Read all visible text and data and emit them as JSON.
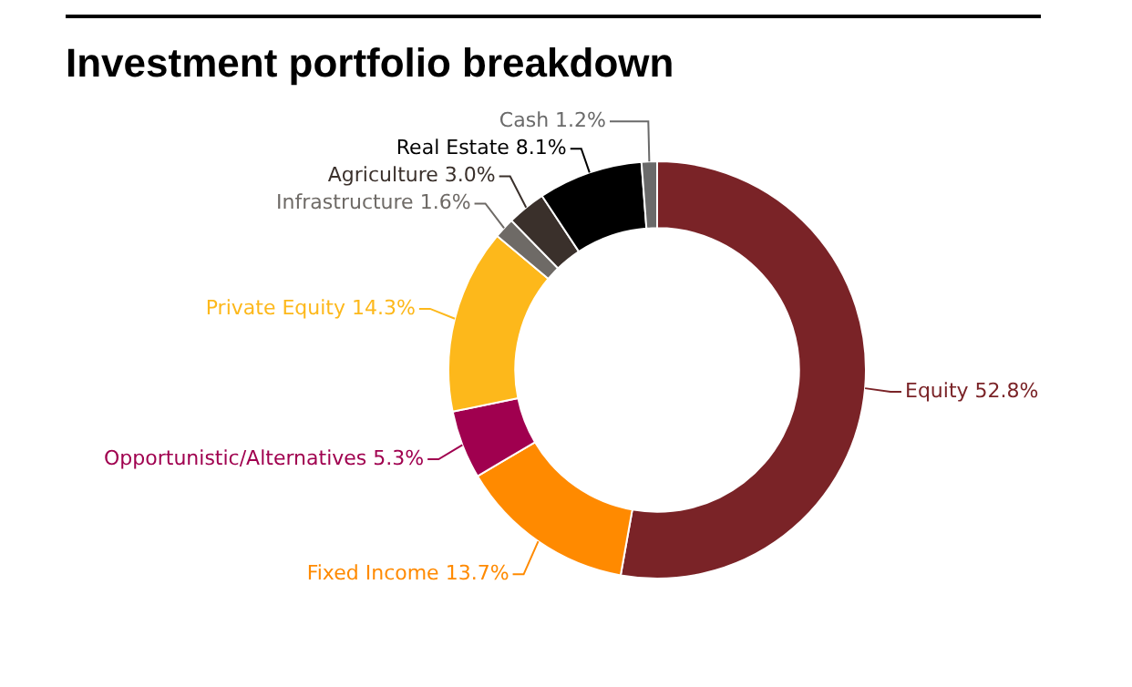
{
  "chart_data": {
    "type": "donut",
    "title": "Investment portfolio breakdown",
    "categories": [
      "Equity",
      "Fixed Income",
      "Opportunistic/Alternatives",
      "Private Equity",
      "Infrastructure",
      "Agriculture",
      "Real Estate",
      "Cash"
    ],
    "values": [
      52.8,
      13.7,
      5.3,
      14.3,
      1.6,
      3.0,
      8.1,
      1.2
    ],
    "colors": [
      "#7a2327",
      "#ff8a00",
      "#a0004f",
      "#fdb81b",
      "#6e6a66",
      "#3a302b",
      "#000000",
      "#6a6a6a"
    ],
    "value_labels": [
      "52.8%",
      "13.7%",
      "5.3%",
      "14.3%",
      "1.6%",
      "3.0%",
      "8.1%",
      "1.2%"
    ]
  }
}
